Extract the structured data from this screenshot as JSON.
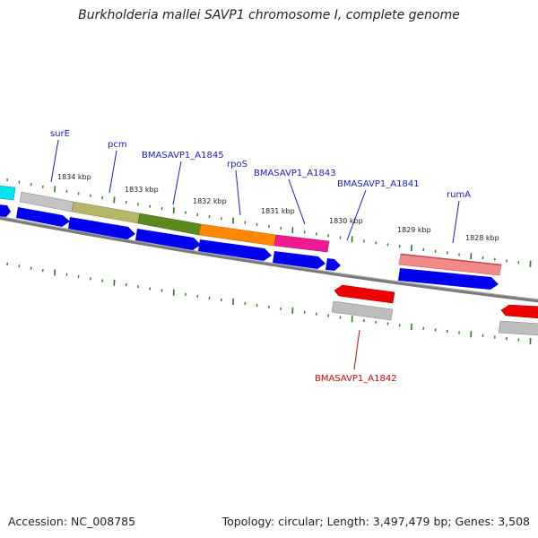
{
  "title": "Burkholderia mallei SAVP1 chromosome I, complete genome",
  "footer": {
    "accession": "Accession: NC_008785",
    "topology": "Topology: circular; Length: 3,497,479 bp; Genes: 3,508"
  },
  "colors": {
    "backbone": "#7a7a7a",
    "tick": "#2a7a1e",
    "forward_label": "#1a1acc",
    "reverse_label": "#dd0000",
    "cds": "#0000ee",
    "gene_red": "#ee0000",
    "gene_grey": "#b8b8b8"
  },
  "kbp_labels": [
    "1834 kbp",
    "1833 kbp",
    "1832 kbp",
    "1831 kbp",
    "1830 kbp",
    "1829 kbp",
    "1828 kbp"
  ],
  "gene_labels": {
    "surE": "surE",
    "pcm": "pcm",
    "a1845": "BMASAVP1_A1845",
    "rpoS": "rpoS",
    "a1843": "BMASAVP1_A1843",
    "a1841": "BMASAVP1_A1841",
    "rumA": "rumA",
    "a1842": "BMASAVP1_A1842"
  }
}
